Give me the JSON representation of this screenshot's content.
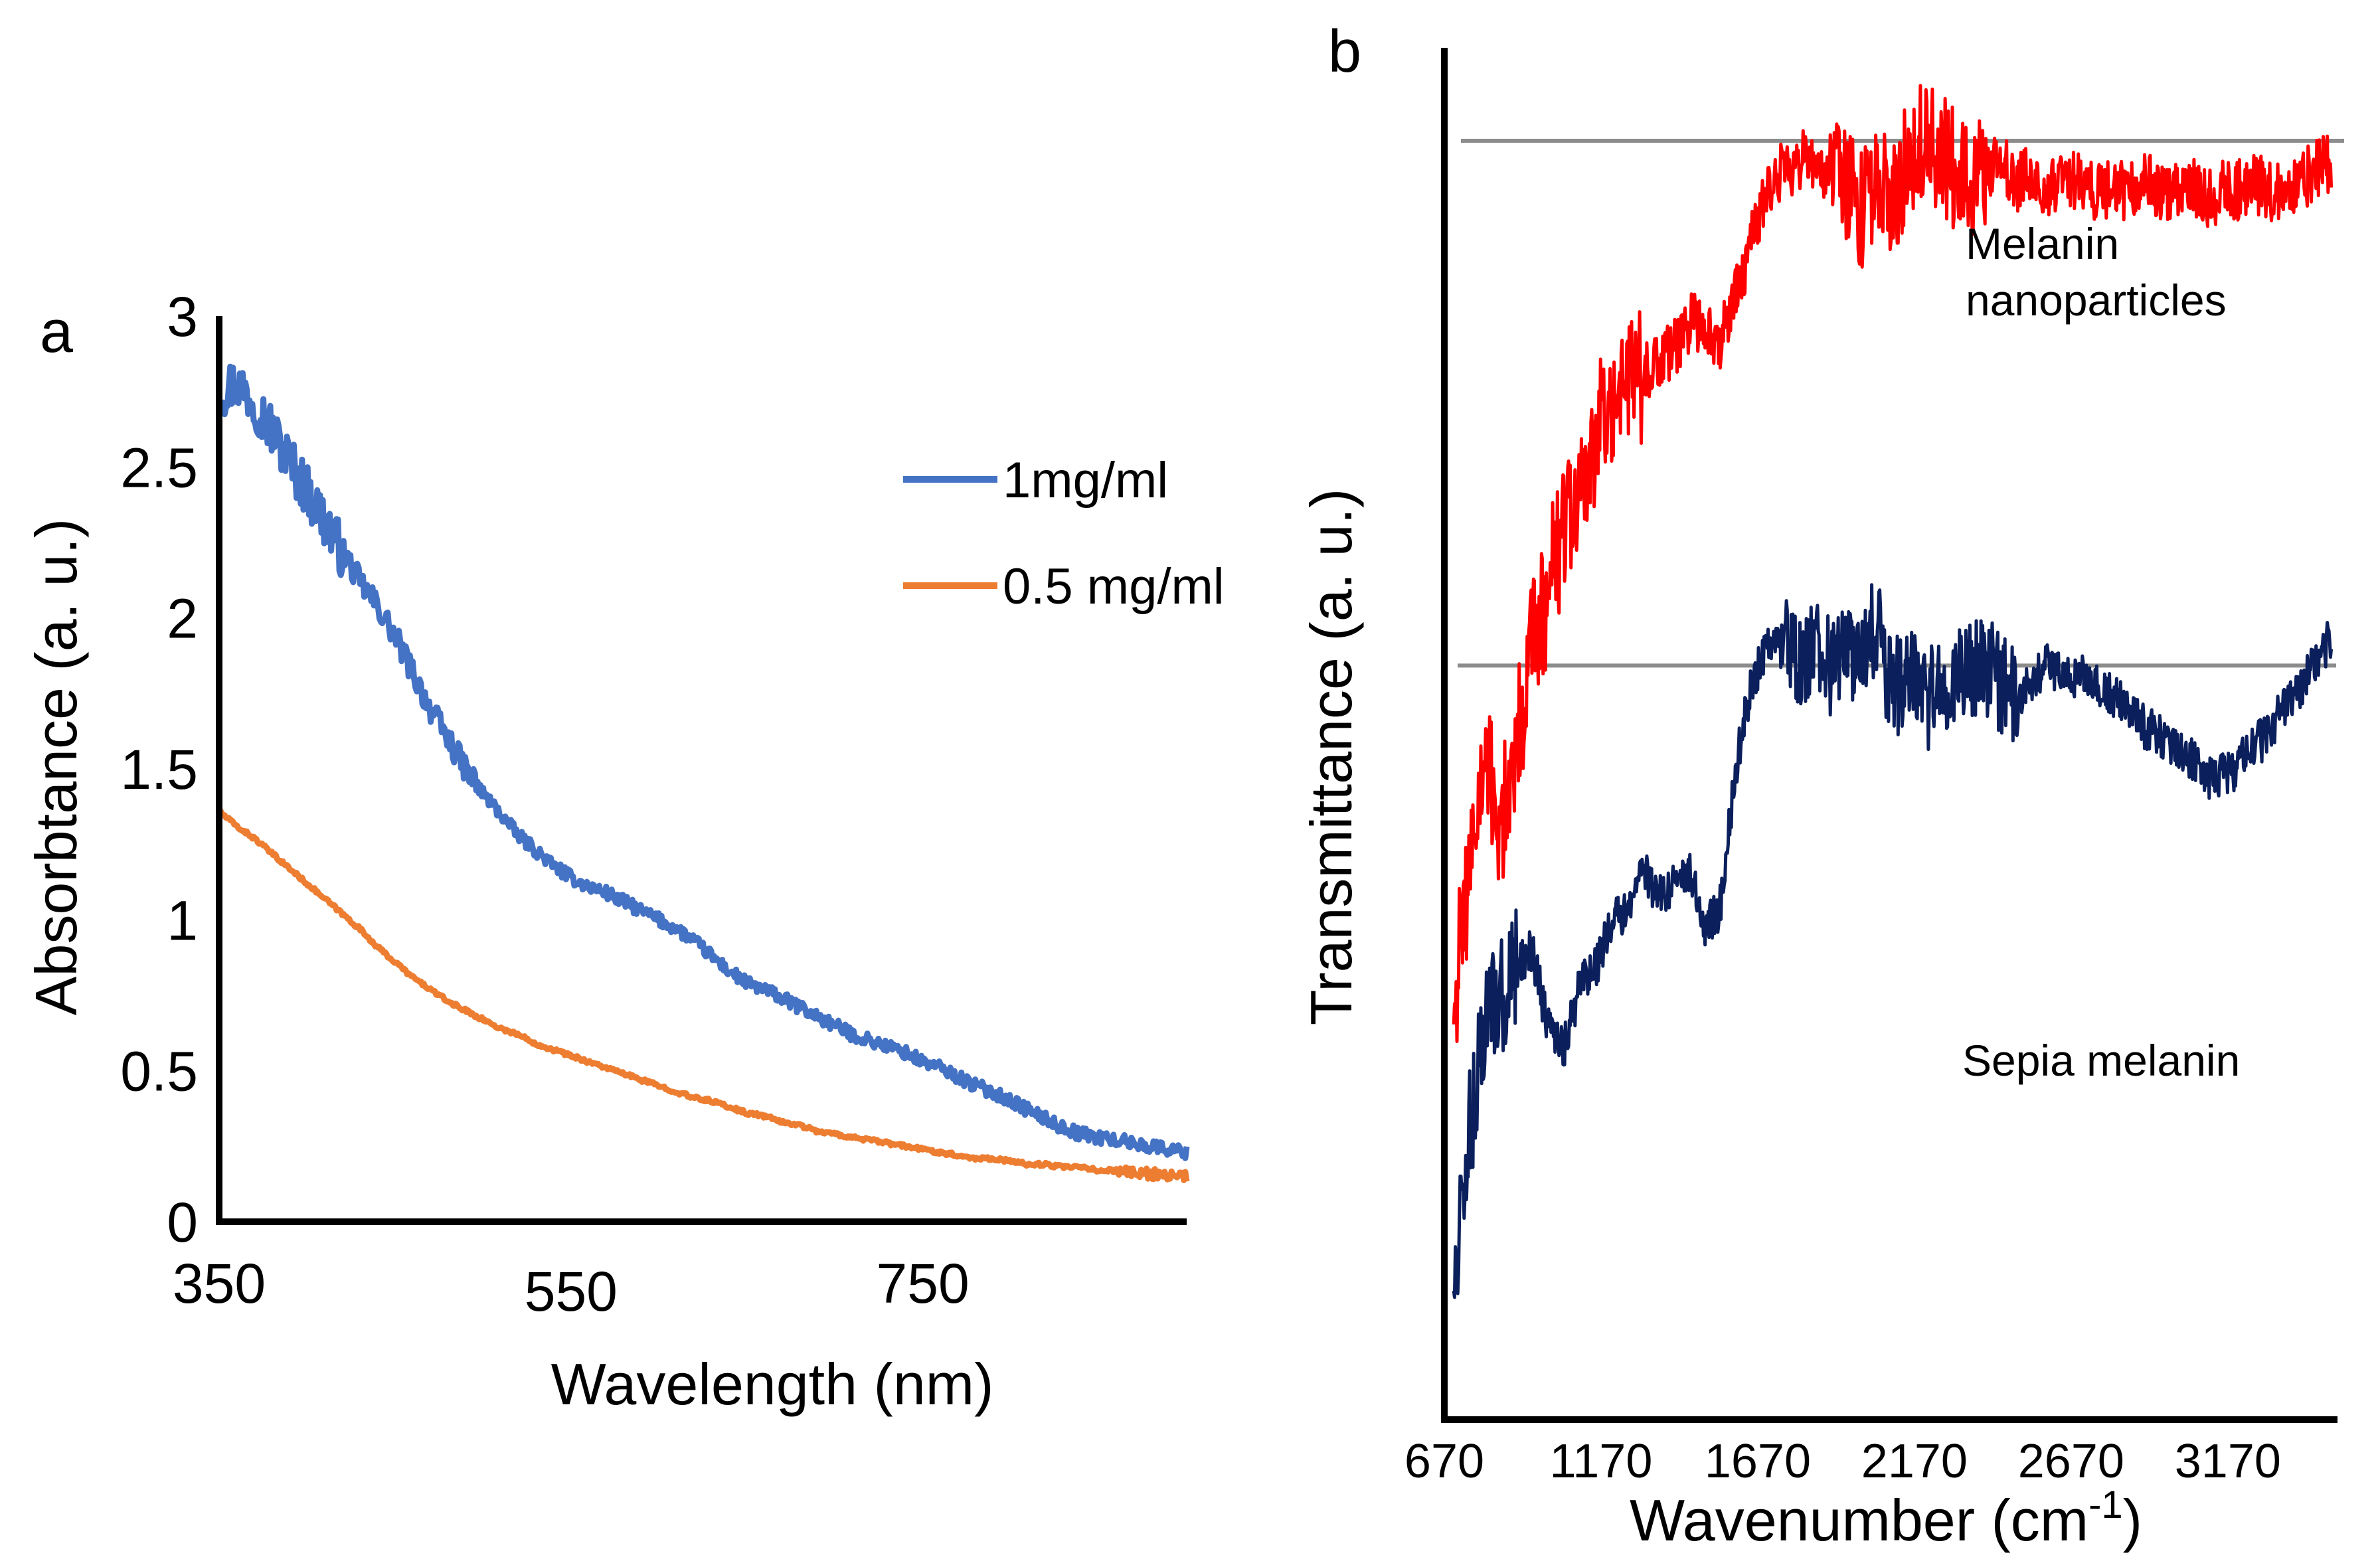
{
  "chart_data": [
    {
      "panel": "a",
      "type": "line",
      "title": "",
      "xlabel": "Wavelength (nm)",
      "ylabel": "Absorbtance (a. u.)",
      "xlim": [
        350,
        900
      ],
      "ylim": [
        0,
        3
      ],
      "xticks": [
        "350",
        "550",
        "750"
      ],
      "yticks": [
        "0",
        "0.5",
        "1",
        "1.5",
        "2",
        "2.5",
        "3"
      ],
      "legend_position": "top-right",
      "series": [
        {
          "name": "1mg/ml",
          "color": "#4472C4",
          "x": [
            350,
            360,
            370,
            380,
            390,
            400,
            410,
            420,
            430,
            440,
            450,
            460,
            470,
            480,
            490,
            500,
            510,
            520,
            530,
            540,
            550,
            560,
            570,
            580,
            590,
            600,
            610,
            620,
            630,
            640,
            650,
            660,
            670,
            680,
            690,
            700,
            710,
            720,
            730,
            740,
            750,
            760,
            770,
            780,
            790,
            800,
            810,
            820,
            830,
            840,
            850,
            860,
            870,
            880,
            890,
            900
          ],
          "values": [
            2.75,
            2.78,
            2.72,
            2.62,
            2.52,
            2.42,
            2.32,
            2.22,
            2.12,
            2.04,
            1.94,
            1.82,
            1.7,
            1.6,
            1.5,
            1.42,
            1.35,
            1.28,
            1.23,
            1.18,
            1.14,
            1.11,
            1.09,
            1.06,
            1.03,
            1.0,
            0.97,
            0.93,
            0.88,
            0.83,
            0.79,
            0.77,
            0.74,
            0.71,
            0.68,
            0.65,
            0.62,
            0.6,
            0.58,
            0.56,
            0.53,
            0.51,
            0.48,
            0.45,
            0.43,
            0.4,
            0.37,
            0.34,
            0.31,
            0.29,
            0.28,
            0.27,
            0.26,
            0.25,
            0.24,
            0.23
          ]
        },
        {
          "name": "0.5 mg/ml",
          "color": "#ED7D31",
          "x": [
            350,
            360,
            370,
            380,
            390,
            400,
            410,
            420,
            430,
            440,
            450,
            460,
            470,
            480,
            490,
            500,
            510,
            520,
            530,
            540,
            550,
            560,
            570,
            580,
            590,
            600,
            610,
            620,
            630,
            640,
            650,
            660,
            670,
            680,
            690,
            700,
            710,
            720,
            730,
            740,
            750,
            760,
            770,
            780,
            790,
            800,
            810,
            820,
            830,
            840,
            850,
            860,
            870,
            880,
            890,
            900
          ],
          "values": [
            1.36,
            1.31,
            1.27,
            1.22,
            1.17,
            1.12,
            1.07,
            1.02,
            0.97,
            0.91,
            0.86,
            0.81,
            0.77,
            0.73,
            0.7,
            0.67,
            0.64,
            0.62,
            0.59,
            0.57,
            0.55,
            0.53,
            0.51,
            0.49,
            0.47,
            0.45,
            0.43,
            0.41,
            0.4,
            0.38,
            0.36,
            0.35,
            0.33,
            0.32,
            0.3,
            0.29,
            0.28,
            0.27,
            0.26,
            0.25,
            0.24,
            0.23,
            0.22,
            0.21,
            0.21,
            0.2,
            0.19,
            0.19,
            0.18,
            0.18,
            0.17,
            0.17,
            0.16,
            0.16,
            0.15,
            0.15
          ]
        }
      ]
    },
    {
      "panel": "b",
      "type": "line",
      "title": "",
      "xlabel": "Wavenumber (cm",
      "xlabel_superscript": "-1",
      "xlabel_suffix": ")",
      "ylabel": "Transmittance (a. u.)",
      "xlim": [
        670,
        3520
      ],
      "xticks": [
        "670",
        "1170",
        "1670",
        "2170",
        "2670",
        "3170"
      ],
      "yticks": [],
      "annotations": [
        "Melanin",
        "nanoparticles",
        "Sepia melanin"
      ],
      "reference_lines": [
        "Melanin nanoparticles baseline",
        "Sepia melanin baseline"
      ],
      "series": [
        {
          "name": "Melanin nanoparticles",
          "color": "#FF0000",
          "x": [
            700,
            750,
            800,
            850,
            900,
            950,
            1000,
            1050,
            1100,
            1150,
            1200,
            1250,
            1300,
            1350,
            1400,
            1450,
            1500,
            1550,
            1600,
            1650,
            1700,
            1750,
            1800,
            1850,
            1900,
            1950,
            2000,
            2050,
            2100,
            2150,
            2200,
            2250,
            2300,
            2350,
            2400,
            2450,
            2500,
            2550,
            2600,
            2650,
            2700,
            2750,
            2800,
            2850,
            2900,
            2950,
            3000,
            3050,
            3100,
            3150,
            3200,
            3250,
            3300,
            3350,
            3400,
            3450,
            3500
          ],
          "values": [
            0.15,
            0.28,
            0.38,
            0.32,
            0.4,
            0.5,
            0.55,
            0.62,
            0.64,
            0.7,
            0.75,
            0.76,
            0.77,
            0.78,
            0.79,
            0.82,
            0.82,
            0.8,
            0.85,
            0.9,
            0.95,
            0.97,
            0.98,
            0.98,
            0.97,
            0.96,
            0.93,
            0.97,
            0.94,
            0.98,
            1.0,
            0.99,
            0.97,
            0.96,
            0.97,
            0.98,
            0.96,
            0.97,
            0.95,
            0.96,
            0.96,
            0.95,
            0.95,
            0.95,
            0.96,
            0.95,
            0.95,
            0.96,
            0.94,
            0.95,
            0.95,
            0.96,
            0.95,
            0.95,
            0.96,
            0.97,
            0.98
          ]
        },
        {
          "name": "Sepia melanin",
          "color": "#0B1F5C",
          "x": [
            700,
            750,
            800,
            850,
            900,
            950,
            1000,
            1050,
            1100,
            1150,
            1200,
            1250,
            1300,
            1350,
            1400,
            1450,
            1500,
            1550,
            1600,
            1650,
            1700,
            1750,
            1800,
            1850,
            1900,
            1950,
            2000,
            2050,
            2100,
            2150,
            2200,
            2250,
            2300,
            2350,
            2400,
            2450,
            2500,
            2550,
            2600,
            2650,
            2700,
            2750,
            2800,
            2850,
            2900,
            2950,
            3000,
            3050,
            3100,
            3150,
            3200,
            3250,
            3300,
            3350,
            3400,
            3450,
            3500
          ],
          "values": [
            -0.12,
            0.02,
            0.12,
            0.15,
            0.18,
            0.2,
            0.12,
            0.1,
            0.16,
            0.18,
            0.22,
            0.24,
            0.28,
            0.25,
            0.26,
            0.28,
            0.22,
            0.24,
            0.38,
            0.46,
            0.5,
            0.5,
            0.48,
            0.5,
            0.48,
            0.49,
            0.5,
            0.52,
            0.45,
            0.48,
            0.44,
            0.46,
            0.47,
            0.48,
            0.48,
            0.46,
            0.45,
            0.47,
            0.48,
            0.47,
            0.47,
            0.46,
            0.45,
            0.44,
            0.42,
            0.41,
            0.4,
            0.39,
            0.37,
            0.37,
            0.38,
            0.4,
            0.41,
            0.44,
            0.46,
            0.48,
            0.51
          ]
        }
      ]
    }
  ]
}
